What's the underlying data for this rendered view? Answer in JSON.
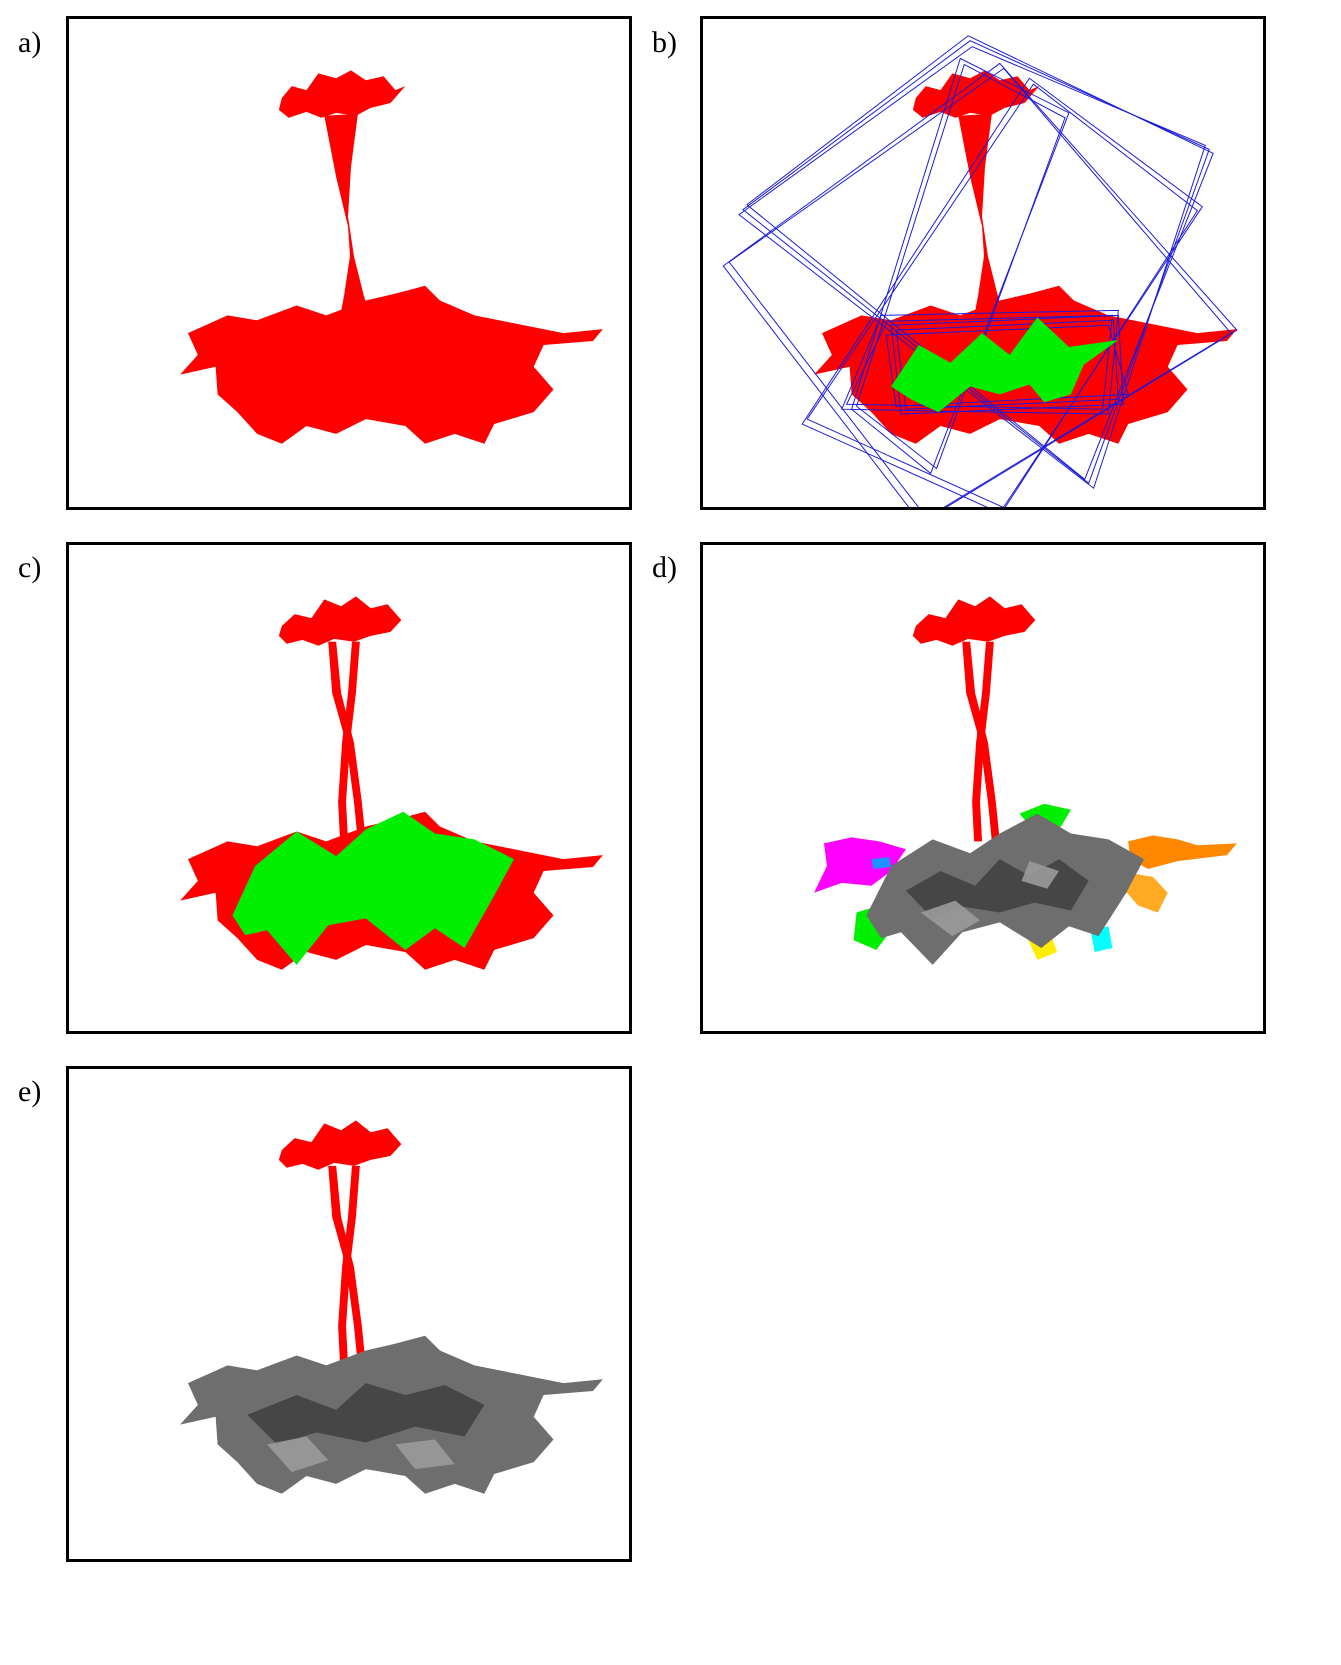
{
  "figure": {
    "colors": {
      "segment_red": "#ff0000",
      "overlay_green": "#00ee00",
      "box_blue": "#1a1adb",
      "leaf_gray": "#6e6e6e",
      "leaf_dark": "#3c3c3c",
      "frame": "#000000"
    },
    "panels": [
      {
        "label": "a)"
      },
      {
        "label": "b)"
      },
      {
        "label": "c)"
      },
      {
        "label": "d)"
      },
      {
        "label": "e)"
      }
    ],
    "leaf_palette": [
      "#ff00ff",
      "#ff8800",
      "#ffaa22",
      "#00ee00",
      "#ffee00",
      "#00ffff",
      "#1e90ff"
    ]
  }
}
